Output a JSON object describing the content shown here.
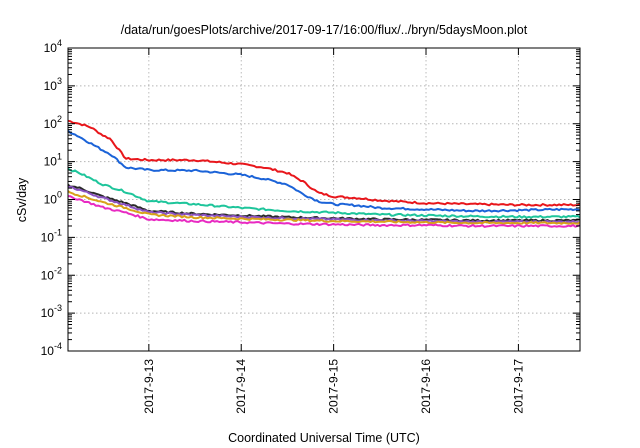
{
  "chart_data": {
    "type": "line",
    "title": "/data/run/goesPlots/archive/2017-09-17/16:00/flux/../bryn/5daysMoon.plot",
    "xlabel": "Coordinated Universal Time (UTC)",
    "ylabel": "cSv/day",
    "yscale": "log",
    "ylim": [
      0.0001,
      10000
    ],
    "y_ticks": [
      {
        "value": 0.0001,
        "base": "10",
        "exp": "-4"
      },
      {
        "value": 0.001,
        "base": "10",
        "exp": "-3"
      },
      {
        "value": 0.01,
        "base": "10",
        "exp": "-2"
      },
      {
        "value": 0.1,
        "base": "10",
        "exp": "-1"
      },
      {
        "value": 1,
        "base": "10",
        "exp": "0"
      },
      {
        "value": 10,
        "base": "10",
        "exp": "1"
      },
      {
        "value": 100,
        "base": "10",
        "exp": "2"
      },
      {
        "value": 1000,
        "base": "10",
        "exp": "3"
      },
      {
        "value": 10000,
        "base": "10",
        "exp": "4"
      }
    ],
    "xlim": [
      "2017-09-12T03:00",
      "2017-09-17T16:00"
    ],
    "x_ticks": [
      "2017-9-13",
      "2017-9-14",
      "2017-9-15",
      "2017-9-16",
      "2017-9-17"
    ],
    "grid": true,
    "series": [
      {
        "color": "#e8161b",
        "x": [
          "2017-09-12T03:00",
          "2017-09-12T06:00",
          "2017-09-12T09:00",
          "2017-09-12T12:00",
          "2017-09-12T14:00",
          "2017-09-12T18:00",
          "2017-09-13T00:00",
          "2017-09-13T12:00",
          "2017-09-14T00:00",
          "2017-09-14T06:00",
          "2017-09-14T12:00",
          "2017-09-14T16:00",
          "2017-09-14T20:00",
          "2017-09-15T00:00",
          "2017-09-15T06:00",
          "2017-09-15T12:00",
          "2017-09-16T00:00",
          "2017-09-16T12:00",
          "2017-09-17T00:00",
          "2017-09-17T12:00",
          "2017-09-17T16:00"
        ],
        "y": [
          120,
          100,
          80,
          50,
          40,
          12,
          11,
          11,
          8.5,
          7,
          5,
          3,
          1.5,
          1.2,
          1.1,
          0.95,
          0.8,
          0.75,
          0.72,
          0.72,
          0.72
        ]
      },
      {
        "color": "#1b63d8",
        "x": [
          "2017-09-12T03:00",
          "2017-09-12T06:00",
          "2017-09-12T09:00",
          "2017-09-12T12:00",
          "2017-09-12T14:00",
          "2017-09-12T18:00",
          "2017-09-13T00:00",
          "2017-09-13T12:00",
          "2017-09-14T00:00",
          "2017-09-14T06:00",
          "2017-09-14T12:00",
          "2017-09-14T16:00",
          "2017-09-14T20:00",
          "2017-09-15T00:00",
          "2017-09-15T06:00",
          "2017-09-15T12:00",
          "2017-09-16T00:00",
          "2017-09-16T12:00",
          "2017-09-17T00:00",
          "2017-09-17T12:00",
          "2017-09-17T16:00"
        ],
        "y": [
          65,
          45,
          30,
          20,
          16,
          7,
          6,
          5.8,
          4.5,
          3.5,
          2.5,
          1.4,
          0.9,
          0.75,
          0.7,
          0.6,
          0.55,
          0.5,
          0.52,
          0.55,
          0.55
        ]
      },
      {
        "color": "#1ec59b",
        "x": [
          "2017-09-12T03:00",
          "2017-09-12T06:00",
          "2017-09-12T12:00",
          "2017-09-12T18:00",
          "2017-09-13T00:00",
          "2017-09-13T12:00",
          "2017-09-14T00:00",
          "2017-09-14T12:00",
          "2017-09-15T00:00",
          "2017-09-15T12:00",
          "2017-09-16T00:00",
          "2017-09-16T12:00",
          "2017-09-17T00:00",
          "2017-09-17T16:00"
        ],
        "y": [
          6.5,
          5,
          2.5,
          1.6,
          0.9,
          0.75,
          0.6,
          0.5,
          0.45,
          0.4,
          0.38,
          0.36,
          0.35,
          0.35
        ]
      },
      {
        "color": "#2a2a2a",
        "x": [
          "2017-09-12T03:00",
          "2017-09-12T06:00",
          "2017-09-12T12:00",
          "2017-09-12T18:00",
          "2017-09-13T00:00",
          "2017-09-13T12:00",
          "2017-09-14T00:00",
          "2017-09-14T12:00",
          "2017-09-15T00:00",
          "2017-09-15T12:00",
          "2017-09-16T00:00",
          "2017-09-16T12:00",
          "2017-09-17T00:00",
          "2017-09-17T16:00"
        ],
        "y": [
          2.4,
          2,
          1.2,
          0.8,
          0.5,
          0.42,
          0.38,
          0.34,
          0.32,
          0.3,
          0.29,
          0.28,
          0.28,
          0.28
        ]
      },
      {
        "color": "#8b52c2",
        "x": [
          "2017-09-12T03:00",
          "2017-09-12T06:00",
          "2017-09-12T12:00",
          "2017-09-12T18:00",
          "2017-09-13T00:00",
          "2017-09-13T12:00",
          "2017-09-14T00:00",
          "2017-09-14T12:00",
          "2017-09-15T00:00",
          "2017-09-15T12:00",
          "2017-09-16T00:00",
          "2017-09-16T12:00",
          "2017-09-17T00:00",
          "2017-09-17T16:00"
        ],
        "y": [
          2.2,
          1.8,
          1.1,
          0.72,
          0.46,
          0.39,
          0.35,
          0.32,
          0.3,
          0.28,
          0.27,
          0.26,
          0.26,
          0.26
        ]
      },
      {
        "color": "#d8a21a",
        "x": [
          "2017-09-12T03:00",
          "2017-09-12T06:00",
          "2017-09-12T12:00",
          "2017-09-12T18:00",
          "2017-09-13T00:00",
          "2017-09-13T12:00",
          "2017-09-14T00:00",
          "2017-09-14T12:00",
          "2017-09-15T00:00",
          "2017-09-15T12:00",
          "2017-09-16T00:00",
          "2017-09-16T12:00",
          "2017-09-17T00:00",
          "2017-09-17T16:00"
        ],
        "y": [
          1.6,
          1.3,
          0.85,
          0.6,
          0.4,
          0.34,
          0.31,
          0.29,
          0.27,
          0.26,
          0.25,
          0.24,
          0.24,
          0.24
        ]
      },
      {
        "color": "#e82ac2",
        "x": [
          "2017-09-12T03:00",
          "2017-09-12T06:00",
          "2017-09-12T12:00",
          "2017-09-12T18:00",
          "2017-09-13T00:00",
          "2017-09-13T12:00",
          "2017-09-14T00:00",
          "2017-09-14T12:00",
          "2017-09-15T00:00",
          "2017-09-15T12:00",
          "2017-09-16T00:00",
          "2017-09-16T12:00",
          "2017-09-17T00:00",
          "2017-09-17T16:00"
        ],
        "y": [
          1.2,
          1,
          0.62,
          0.45,
          0.3,
          0.27,
          0.25,
          0.23,
          0.22,
          0.21,
          0.21,
          0.2,
          0.2,
          0.2
        ]
      }
    ]
  }
}
